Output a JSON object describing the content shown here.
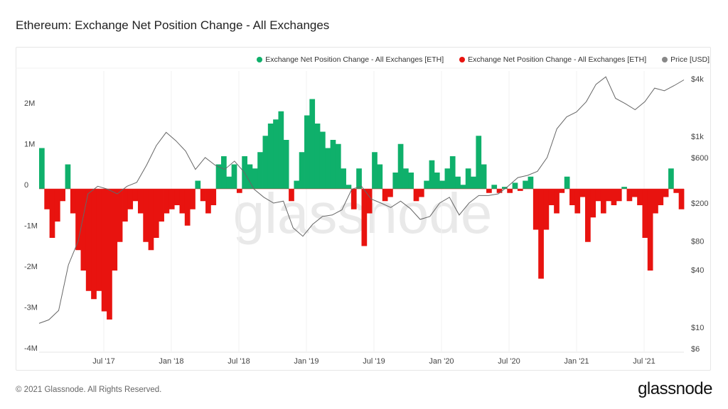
{
  "header": {
    "title": "Ethereum: Exchange Net Position Change - All Exchanges"
  },
  "legend": [
    {
      "label": "Exchange Net Position Change - All Exchanges [ETH]",
      "color": "#0fb06b"
    },
    {
      "label": "Exchange Net Position Change - All Exchanges [ETH]",
      "color": "#e8130f"
    },
    {
      "label": "Price [USD]",
      "color": "#888888"
    }
  ],
  "footer": {
    "copyright": "© 2021 Glassnode. All Rights Reserved.",
    "brand": "glassnode"
  },
  "watermark": "glassnode",
  "chart_data": {
    "type": "bar+line",
    "title": "Ethereum: Exchange Net Position Change - All Exchanges",
    "x_ticks": [
      "Jul '17",
      "Jan '18",
      "Jul '18",
      "Jan '19",
      "Jul '19",
      "Jan '20",
      "Jul '20",
      "Jan '21",
      "Jul '21"
    ],
    "y_left_ticks": [
      {
        "label": "2M",
        "value": 2
      },
      {
        "label": "1M",
        "value": 1
      },
      {
        "label": "0",
        "value": 0
      },
      {
        "label": "-1M",
        "value": -1
      },
      {
        "label": "-2M",
        "value": -2
      },
      {
        "label": "-3M",
        "value": -3
      },
      {
        "label": "-4M",
        "value": -4
      }
    ],
    "y_left_unit": "M ETH",
    "y_left_range": [
      -4,
      2.6
    ],
    "y_right_ticks": [
      {
        "label": "$4k",
        "value": 4000
      },
      {
        "label": "$1k",
        "value": 1000
      },
      {
        "label": "$600",
        "value": 600
      },
      {
        "label": "$200",
        "value": 200
      },
      {
        "label": "$80",
        "value": 80
      },
      {
        "label": "$40",
        "value": 40
      },
      {
        "label": "$10",
        "value": 10
      },
      {
        "label": "$6",
        "value": 6
      }
    ],
    "y_right_scale": "log",
    "x_range": [
      "2017-02",
      "2021-10"
    ],
    "net_position_change_M": [
      1.0,
      -0.5,
      -1.2,
      -0.8,
      -0.3,
      0.6,
      -0.6,
      -1.5,
      -2.0,
      -2.5,
      -2.7,
      -2.5,
      -3.0,
      -3.2,
      -2.0,
      -1.3,
      -0.8,
      -0.5,
      -0.3,
      -0.6,
      -1.3,
      -1.5,
      -1.2,
      -0.8,
      -0.6,
      -0.5,
      -0.4,
      -0.6,
      -0.9,
      -0.5,
      0.2,
      -0.3,
      -0.6,
      -0.4,
      0.6,
      0.8,
      0.3,
      0.6,
      -0.1,
      0.8,
      0.6,
      0.5,
      0.9,
      1.3,
      1.6,
      1.7,
      1.9,
      1.2,
      -0.3,
      0.2,
      0.9,
      1.8,
      2.2,
      1.6,
      1.4,
      1.0,
      1.2,
      1.1,
      0.5,
      0.1,
      -0.5,
      0.5,
      -1.4,
      -0.6,
      0.9,
      0.6,
      -0.3,
      -0.2,
      0.4,
      1.1,
      0.5,
      0.4,
      -0.3,
      -0.2,
      0.2,
      0.7,
      0.4,
      0.2,
      0.5,
      0.8,
      0.3,
      0.1,
      0.5,
      0.3,
      1.3,
      0.6,
      -0.1,
      0.1,
      -0.1,
      0.05,
      -0.1,
      0.15,
      -0.05,
      0.2,
      0.3,
      -1.0,
      -2.2,
      -1.0,
      -0.4,
      -0.6,
      -0.1,
      0.3,
      -0.4,
      -0.6,
      -0.2,
      -1.3,
      -0.7,
      -0.3,
      -0.6,
      -0.3,
      -0.4,
      -0.3,
      0.05,
      -0.3,
      -0.2,
      -0.4,
      -1.2,
      -2.0,
      -0.6,
      -0.4,
      -0.2,
      0.5,
      -0.1,
      -0.5
    ],
    "price_usd": [
      11,
      12,
      15,
      45,
      80,
      250,
      300,
      280,
      250,
      300,
      330,
      500,
      800,
      1100,
      900,
      700,
      450,
      600,
      500,
      450,
      550,
      420,
      280,
      230,
      200,
      210,
      110,
      90,
      120,
      145,
      150,
      170,
      280,
      300,
      220,
      200,
      180,
      210,
      175,
      135,
      145,
      200,
      230,
      150,
      200,
      240,
      240,
      250,
      300,
      370,
      390,
      430,
      600,
      1200,
      1600,
      1800,
      2300,
      3500,
      4200,
      2500,
      2200,
      1900,
      2300,
      3200,
      3000,
      3400,
      3900
    ]
  }
}
